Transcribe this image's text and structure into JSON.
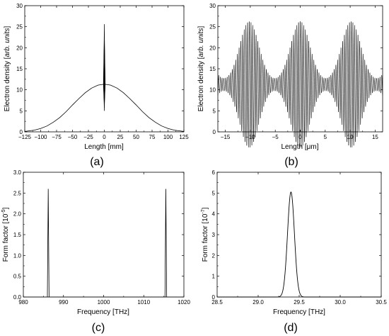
{
  "chart_data": [
    {
      "type": "line",
      "panel_label": "(a)",
      "xlabel": "Length [mm]",
      "ylabel_parts": [
        "Electron density [",
        "arb. units",
        "]"
      ],
      "xlim": [
        -125,
        125
      ],
      "ylim": [
        0,
        30
      ],
      "xticks": [
        "-125",
        "-100",
        "-75",
        "-50",
        "-25",
        "0",
        "25",
        "50",
        "75",
        "100",
        "125"
      ],
      "yticks": [
        "0",
        "5",
        "10",
        "15",
        "20",
        "25",
        "30"
      ],
      "series": [
        {
          "x": [
            -125,
            -110,
            -100,
            -90,
            -80,
            -70,
            -60,
            -50,
            -40,
            -30,
            -20,
            -10,
            -4,
            0,
            4,
            10,
            20,
            30,
            40,
            50,
            60,
            70,
            80,
            90,
            100,
            110,
            125
          ],
          "y": [
            0.1,
            0.4,
            0.8,
            1.4,
            2.3,
            3.4,
            4.8,
            6.4,
            7.9,
            9.3,
            10.4,
            11.1,
            11.25,
            11.3,
            11.25,
            11.1,
            10.4,
            9.3,
            7.9,
            6.4,
            4.8,
            3.4,
            2.3,
            1.4,
            0.8,
            0.4,
            0.1
          ]
        }
      ],
      "spike": {
        "x_min": -1.5,
        "x_max": 1.5,
        "y_min": 5,
        "y_max": 25.6
      }
    },
    {
      "type": "line",
      "panel_label": "(b)",
      "xlabel": "Length [μm]",
      "ylabel_parts": [
        "Electron density [",
        "arb. units",
        "]"
      ],
      "xlim": [
        -16.5,
        16.5
      ],
      "ylim": [
        0,
        30
      ],
      "xticks": [
        "-15",
        "-10",
        "-5",
        "0",
        "5",
        "10",
        "15"
      ],
      "yticks": [
        "0",
        "5",
        "10",
        "15",
        "20",
        "25",
        "30"
      ],
      "series": [
        {
          "description_fast_period_um": 0.34,
          "envelope_centers_um": [
            -10.2,
            0,
            10.2
          ],
          "baseline": 11.25,
          "max_amplitude": 14.3,
          "envelope_period_um": 10.2,
          "x_range": [
            -16.5,
            16.5
          ]
        }
      ]
    },
    {
      "type": "line",
      "panel_label": "(c)",
      "xlabel": "Frequency [THz]",
      "ylabel_parts": [
        "Form factor [10",
        "-5",
        "]"
      ],
      "xlim": [
        980,
        1020
      ],
      "ylim": [
        0,
        3.0
      ],
      "xticks": [
        "980",
        "990",
        "1000",
        "1010",
        "1020"
      ],
      "yticks": [
        "0.0",
        "0.5",
        "1.0",
        "1.5",
        "2.0",
        "2.5",
        "3.0"
      ],
      "series": [
        {
          "peaks": [
            {
              "x": 986.2,
              "y": 2.6
            },
            {
              "x": 1015.5,
              "y": 2.6
            }
          ]
        }
      ]
    },
    {
      "type": "line",
      "panel_label": "(d)",
      "xlabel": "Frequency [THz]",
      "ylabel_parts": [
        "Form factor [10",
        "-7",
        "]"
      ],
      "xlim": [
        28.5,
        30.5
      ],
      "ylim": [
        0,
        6
      ],
      "xticks": [
        "28.5",
        "29.0",
        "29.5",
        "30.0",
        "30.5"
      ],
      "yticks": [
        "0",
        "1",
        "2",
        "3",
        "4",
        "5",
        "6"
      ],
      "series": [
        {
          "peak_x": 29.4,
          "peak_y": 5.05,
          "sigma": 0.042
        }
      ]
    }
  ]
}
